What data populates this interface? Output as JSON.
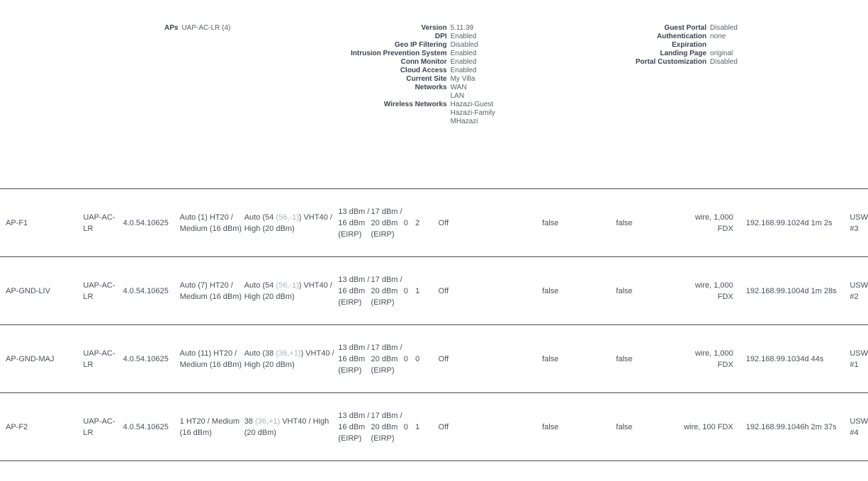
{
  "aps_info": {
    "label": "APs",
    "value": "UAP-AC-LR (4)"
  },
  "system_info": [
    {
      "label": "Version",
      "values": [
        "5.11.39"
      ]
    },
    {
      "label": "DPI",
      "values": [
        "Enabled"
      ]
    },
    {
      "label": "Geo IP Filtering",
      "values": [
        "Disabled"
      ]
    },
    {
      "label": "Intrusion Prevention System",
      "values": [
        "Enabled"
      ]
    },
    {
      "label": "Conn Monitor",
      "values": [
        "Enabled"
      ]
    },
    {
      "label": "Cloud Access",
      "values": [
        "Enabled"
      ]
    },
    {
      "label": "Current Site",
      "values": [
        "My Villa"
      ]
    },
    {
      "label": "Networks",
      "values": [
        "WAN",
        "LAN"
      ]
    },
    {
      "label": "Wireless Networks",
      "values": [
        "Hazazi-Guest",
        "Hazazi-Family",
        "MHazazi"
      ]
    }
  ],
  "portal_info": [
    {
      "label": "Guest Portal",
      "value": "Disabled"
    },
    {
      "label": "Authentication",
      "value": "none"
    },
    {
      "label": "Expiration",
      "value": ""
    },
    {
      "label": "Landing Page",
      "value": "original"
    },
    {
      "label": "Portal Customization",
      "value": "Disabled"
    }
  ],
  "devices": [
    {
      "name": "AP-F1",
      "model": "UAP-AC-LR",
      "version": "4.0.54.10625",
      "radio_ng": "Auto (1) HT20 / Medium (16 dBm)",
      "radio_na": {
        "prefix": "Auto (54 ",
        "muted": "(56,-1)",
        "suffix": ") VHT40 / High (20 dBm)"
      },
      "power_ng": "13 dBm / 16 dBm (EIRP)",
      "power_na": "17 dBm / 20 dBm (EIRP)",
      "clients_ng": "0",
      "clients_na": "2",
      "locate": "Off",
      "flag_a": "false",
      "flag_b": "false",
      "uplink": "wire, 1,000 FDX",
      "ip": "192.168.99.102",
      "uptime": "4d 1m 2s",
      "switch": "USW #3"
    },
    {
      "name": "AP-GND-LIV",
      "model": "UAP-AC-LR",
      "version": "4.0.54.10625",
      "radio_ng": "Auto (7) HT20 / Medium (16 dBm)",
      "radio_na": {
        "prefix": "Auto (54 ",
        "muted": "(56,-1)",
        "suffix": ") VHT40 / High (20 dBm)"
      },
      "power_ng": "13 dBm / 16 dBm (EIRP)",
      "power_na": "17 dBm / 20 dBm (EIRP)",
      "clients_ng": "0",
      "clients_na": "1",
      "locate": "Off",
      "flag_a": "false",
      "flag_b": "false",
      "uplink": "wire, 1,000 FDX",
      "ip": "192.168.99.100",
      "uptime": "4d 1m 28s",
      "switch": "USW #2"
    },
    {
      "name": "AP-GND-MAJ",
      "model": "UAP-AC-LR",
      "version": "4.0.54.10625",
      "radio_ng": "Auto (11) HT20 / Medium (16 dBm)",
      "radio_na": {
        "prefix": "Auto (38 ",
        "muted": "(36,+1)",
        "suffix": ") VHT40 / High (20 dBm)"
      },
      "power_ng": "13 dBm / 16 dBm (EIRP)",
      "power_na": "17 dBm / 20 dBm (EIRP)",
      "clients_ng": "0",
      "clients_na": "0",
      "locate": "Off",
      "flag_a": "false",
      "flag_b": "false",
      "uplink": "wire, 1,000 FDX",
      "ip": "192.168.99.103",
      "uptime": "4d 44s",
      "switch": "USW #1"
    },
    {
      "name": "AP-F2",
      "model": "UAP-AC-LR",
      "version": "4.0.54.10625",
      "radio_ng": "1 HT20 / Medium (16 dBm)",
      "radio_na": {
        "prefix": "38 ",
        "muted": "(36,+1)",
        "suffix": " VHT40 / High (20 dBm)"
      },
      "power_ng": "13 dBm / 16 dBm (EIRP)",
      "power_na": "17 dBm / 20 dBm (EIRP)",
      "clients_ng": "0",
      "clients_na": "1",
      "locate": "Off",
      "flag_a": "false",
      "flag_b": "false",
      "uplink": "wire, 100 FDX",
      "ip": "192.168.99.104",
      "uptime": "6h 2m 37s",
      "switch": "USW #4"
    }
  ]
}
